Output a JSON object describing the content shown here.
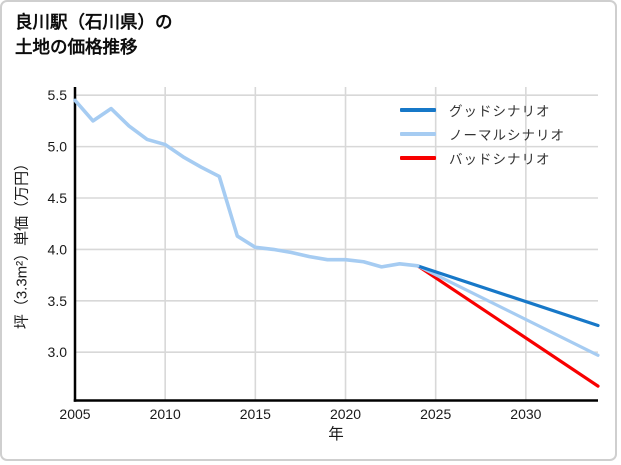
{
  "title": {
    "line1": "良川駅（石川県）の",
    "line2": "土地の価格推移"
  },
  "chart_data": {
    "type": "line",
    "title": "良川駅（石川県）の土地の価格推移",
    "xlabel": "年",
    "ylabel": "坪（3.3m²）単価（万円）",
    "xlim": [
      2005,
      2034
    ],
    "ylim": [
      2.53,
      5.58
    ],
    "xticks": [
      2005,
      2010,
      2015,
      2020,
      2025,
      2030
    ],
    "yticks": [
      3.0,
      3.5,
      4.0,
      4.5,
      5.0,
      5.5
    ],
    "grid": true,
    "legend_position": "top-right",
    "historical": {
      "id": "price-history",
      "color": "#a6ccf2",
      "x": [
        2005,
        2006,
        2007,
        2008,
        2009,
        2010,
        2011,
        2012,
        2013,
        2014,
        2015,
        2016,
        2017,
        2018,
        2019,
        2020,
        2021,
        2022,
        2023,
        2024
      ],
      "y": [
        5.45,
        5.25,
        5.37,
        5.2,
        5.07,
        5.02,
        4.9,
        4.8,
        4.71,
        4.13,
        4.02,
        4.0,
        3.97,
        3.93,
        3.9,
        3.9,
        3.88,
        3.83,
        3.86,
        3.84
      ]
    },
    "scenarios": [
      {
        "name": "グッドシナリオ",
        "color": "#1778c8",
        "x": [
          2024,
          2034
        ],
        "y": [
          3.84,
          3.26
        ]
      },
      {
        "name": "ノーマルシナリオ",
        "color": "#a6ccf2",
        "x": [
          2024,
          2034
        ],
        "y": [
          3.84,
          2.97
        ]
      },
      {
        "name": "バッドシナリオ",
        "color": "#f80000",
        "x": [
          2024,
          2034
        ],
        "y": [
          3.84,
          2.67
        ]
      }
    ],
    "style": {
      "grid_color": "#d8d8d8",
      "axis_color": "#000000",
      "tick_label_color": "#1a1a1a"
    }
  }
}
